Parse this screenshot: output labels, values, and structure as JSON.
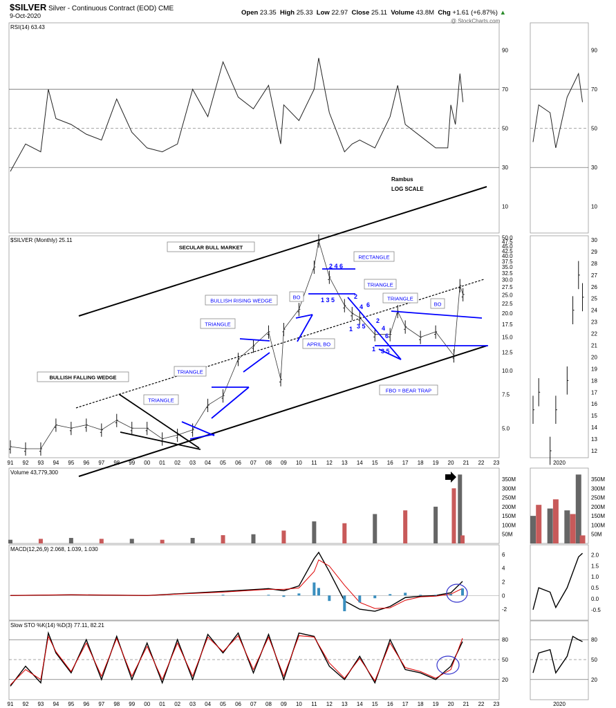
{
  "header": {
    "symbol": "$SILVER",
    "description": "Silver - Continuous Contract (EOD)",
    "exchange": "CME",
    "date": "9-Oct-2020",
    "open_label": "Open",
    "open": "23.35",
    "high_label": "High",
    "high": "25.33",
    "low_label": "Low",
    "low": "22.97",
    "close_label": "Close",
    "close": "25.11",
    "volume_label": "Volume",
    "volume": "43.8M",
    "chg_label": "Chg",
    "chg": "+1.61 (+6.87%)",
    "watermark": "@ StockCharts.com"
  },
  "annotations": {
    "rambus": "Rambus",
    "log_scale": "LOG SCALE",
    "secular_bull": "SECULAR BULL MARKET",
    "bullish_falling_wedge": "BULLISH FALLING WEDGE",
    "triangle_1": "TRIANGLE",
    "triangle_2": "TRIANGLE",
    "triangle_3": "TRIANGLE",
    "bullish_rising_wedge": "BULLISH RISING WEDGE",
    "bo_1": "BO",
    "rectangle": "RECTANGLE",
    "triangle_4": "TRIANGLE",
    "triangle_5": "TRIANGLE",
    "bo_2": "BO",
    "april_bo": "APRIL BO",
    "fbo": "FBO = BEAR TRAP",
    "num_246": "2 4 6",
    "num_135a": "1 3 5",
    "num_2": "2",
    "num_4": "4",
    "num_6": "6",
    "num_1": "1",
    "num_35": "3 5",
    "num_2b": "2",
    "num_4b": "4",
    "num_6b": "6",
    "num_1b": "1",
    "num_35b": "3 5"
  },
  "chart_data": [
    {
      "type": "line",
      "panel": "RSI",
      "title": "RSI(14) 63.43",
      "ylim": [
        0,
        100
      ],
      "yticks": [
        "10",
        "30",
        "50",
        "70",
        "90"
      ],
      "levels": [
        30,
        50,
        70
      ],
      "x": [
        1991,
        1992,
        1993,
        1993.5,
        1994,
        1995,
        1996,
        1997,
        1998,
        1999,
        2000,
        2001,
        2002,
        2003,
        2004,
        2005,
        2006,
        2007,
        2008,
        2008.8,
        2009,
        2010,
        2011,
        2011.3,
        2012,
        2013,
        2013.5,
        2014,
        2015,
        2016,
        2016.5,
        2017,
        2018,
        2019,
        2019.8,
        2020,
        2020.3,
        2020.6,
        2020.8
      ],
      "values": [
        28,
        42,
        38,
        70,
        55,
        52,
        47,
        44,
        65,
        48,
        40,
        38,
        42,
        70,
        56,
        84,
        66,
        60,
        72,
        42,
        62,
        54,
        70,
        86,
        58,
        38,
        42,
        44,
        40,
        56,
        72,
        52,
        46,
        40,
        40,
        62,
        52,
        78,
        63.43
      ]
    },
    {
      "type": "line",
      "panel": "RSI-2020",
      "x": [
        2019.9,
        2020.0,
        2020.2,
        2020.3,
        2020.5,
        2020.7,
        2020.77
      ],
      "values": [
        43,
        62,
        58,
        40,
        66,
        78,
        63.43
      ],
      "xlabel": "2020",
      "yticks": [
        "30",
        "50",
        "70",
        "90"
      ]
    },
    {
      "type": "candlestick",
      "panel": "Price",
      "title": "$SILVER (Monthly) 25.11",
      "scale": "log",
      "ylim": [
        3.5,
        51
      ],
      "yticks": [
        "5.0",
        "7.5",
        "10.0",
        "12.5",
        "15.0",
        "17.5",
        "20.0",
        "22.5",
        "25.0",
        "27.5",
        "30.0",
        "32.5",
        "35.0",
        "37.5",
        "40.0",
        "42.5",
        "45.0",
        "47.5",
        "50.0"
      ],
      "xticks": [
        "91",
        "92",
        "93",
        "94",
        "95",
        "96",
        "97",
        "98",
        "99",
        "00",
        "01",
        "02",
        "03",
        "04",
        "05",
        "06",
        "07",
        "08",
        "09",
        "10",
        "11",
        "12",
        "13",
        "14",
        "15",
        "16",
        "17",
        "18",
        "19",
        "20",
        "21",
        "22",
        "23"
      ],
      "x": [
        1991,
        1992,
        1993,
        1994,
        1995,
        1996,
        1997,
        1998,
        1999,
        2000,
        2001,
        2002,
        2003,
        2004,
        2005,
        2006,
        2007,
        2008,
        2008.8,
        2009,
        2010,
        2011,
        2011.3,
        2012,
        2013,
        2013.5,
        2014,
        2015,
        2016,
        2016.5,
        2017,
        2018,
        2019,
        2020.2,
        2020.6,
        2020.8
      ],
      "values": [
        4.0,
        3.9,
        3.9,
        5.2,
        5.0,
        5.2,
        4.9,
        5.5,
        5.0,
        5.0,
        4.4,
        4.6,
        4.9,
        6.6,
        7.4,
        11.5,
        13.5,
        16.0,
        9.0,
        16.5,
        21,
        35,
        48,
        31,
        22,
        20,
        19,
        15.5,
        15.5,
        20.5,
        17,
        15,
        16,
        12,
        28,
        25.11
      ]
    },
    {
      "type": "candlestick",
      "panel": "Price-2020",
      "x": [
        2019.9,
        2020.0,
        2020.2,
        2020.3,
        2020.5,
        2020.6,
        2020.7,
        2020.77
      ],
      "values": [
        15.5,
        17.0,
        12.0,
        15.5,
        18.0,
        24.0,
        27.0,
        25.11
      ],
      "yticks": [
        "12",
        "13",
        "14",
        "15",
        "16",
        "17",
        "18",
        "19",
        "20",
        "21",
        "22",
        "23",
        "24",
        "25",
        "26",
        "27",
        "28",
        "29",
        "30"
      ],
      "xlabel": "2020"
    },
    {
      "type": "bar",
      "panel": "Volume",
      "title": "Volume 43,779,300",
      "ylim": [
        0,
        380
      ],
      "yticks": [
        "50M",
        "100M",
        "150M",
        "200M",
        "250M",
        "300M",
        "350M"
      ],
      "x": [
        1991,
        1993,
        1995,
        1997,
        1999,
        2001,
        2003,
        2005,
        2007,
        2009,
        2011,
        2013,
        2015,
        2017,
        2019,
        2020.2,
        2020.6,
        2020.77
      ],
      "values": [
        20,
        25,
        30,
        25,
        25,
        20,
        30,
        45,
        50,
        70,
        120,
        110,
        160,
        180,
        200,
        300,
        375,
        43.8
      ]
    },
    {
      "type": "bar",
      "panel": "Volume-2020",
      "x": [
        2019.9,
        2020.0,
        2020.2,
        2020.3,
        2020.5,
        2020.6,
        2020.7,
        2020.77
      ],
      "values": [
        150,
        210,
        190,
        240,
        180,
        160,
        375,
        43.8
      ],
      "yticks": [
        "50M",
        "100M",
        "150M",
        "200M",
        "250M",
        "300M",
        "350M"
      ],
      "xlabel": "2020"
    },
    {
      "type": "line",
      "panel": "MACD",
      "title": "MACD(12,26,9) 2.068, 1.039, 1.030",
      "ylim": [
        -2.6,
        6.8
      ],
      "yticks": [
        "-2",
        "0",
        "2",
        "4",
        "6"
      ],
      "x": [
        1991,
        1995,
        2000,
        2005,
        2008,
        2009,
        2010,
        2011,
        2011.3,
        2012,
        2013,
        2014,
        2015,
        2016,
        2017,
        2018,
        2019,
        2020,
        2020.77
      ],
      "values": [
        0.0,
        0.1,
        0.0,
        0.6,
        1.0,
        0.7,
        1.4,
        5.4,
        6.3,
        3.5,
        -0.8,
        -2.0,
        -2.3,
        -1.6,
        -0.3,
        -0.1,
        0.0,
        0.4,
        2.068
      ],
      "signal": [
        0.0,
        0.1,
        0.0,
        0.5,
        0.9,
        0.9,
        1.1,
        3.5,
        5.2,
        4.3,
        1.5,
        -1.0,
        -1.9,
        -1.8,
        -0.7,
        -0.2,
        -0.1,
        0.2,
        1.039
      ],
      "histogram": 1.03
    },
    {
      "type": "line",
      "panel": "MACD-2020",
      "x": [
        2019.9,
        2020.0,
        2020.2,
        2020.3,
        2020.5,
        2020.6,
        2020.7,
        2020.77
      ],
      "values": [
        -0.5,
        0.5,
        0.3,
        -0.4,
        0.5,
        1.2,
        1.9,
        2.068
      ],
      "yticks": [
        "-0.5",
        "0.0",
        "0.5",
        "1.0",
        "1.5",
        "2.0"
      ],
      "xlabel": "2020"
    },
    {
      "type": "line",
      "panel": "Slow STO",
      "title": "Slow STO %K(14) %D(3) 77.11, 82.21",
      "ylim": [
        0,
        100
      ],
      "yticks": [
        "20",
        "50",
        "80"
      ],
      "x": [
        1991,
        1992,
        1993,
        1993.5,
        1994,
        1995,
        1996,
        1997,
        1998,
        1999,
        2000,
        2001,
        2002,
        2003,
        2004,
        2005,
        2006,
        2007,
        2008,
        2009,
        2010,
        2011,
        2012,
        2013,
        2014,
        2015,
        2016,
        2017,
        2018,
        2019,
        2020,
        2020.77
      ],
      "values": [
        10,
        40,
        15,
        90,
        60,
        30,
        80,
        20,
        85,
        20,
        75,
        15,
        80,
        20,
        88,
        60,
        90,
        30,
        88,
        20,
        90,
        85,
        40,
        20,
        55,
        15,
        80,
        35,
        30,
        20,
        40,
        77.11
      ],
      "signal": [
        12,
        35,
        20,
        85,
        62,
        32,
        75,
        25,
        82,
        25,
        70,
        20,
        75,
        25,
        84,
        62,
        86,
        35,
        84,
        25,
        86,
        84,
        45,
        22,
        52,
        18,
        75,
        38,
        32,
        22,
        35,
        82.21
      ]
    },
    {
      "type": "line",
      "panel": "Slow STO-2020",
      "x": [
        2019.9,
        2020.0,
        2020.2,
        2020.3,
        2020.5,
        2020.6,
        2020.7,
        2020.77
      ],
      "values": [
        30,
        60,
        65,
        30,
        55,
        85,
        80,
        77.11
      ],
      "yticks": [
        "20",
        "50",
        "80"
      ],
      "xlabel": "2020"
    }
  ]
}
